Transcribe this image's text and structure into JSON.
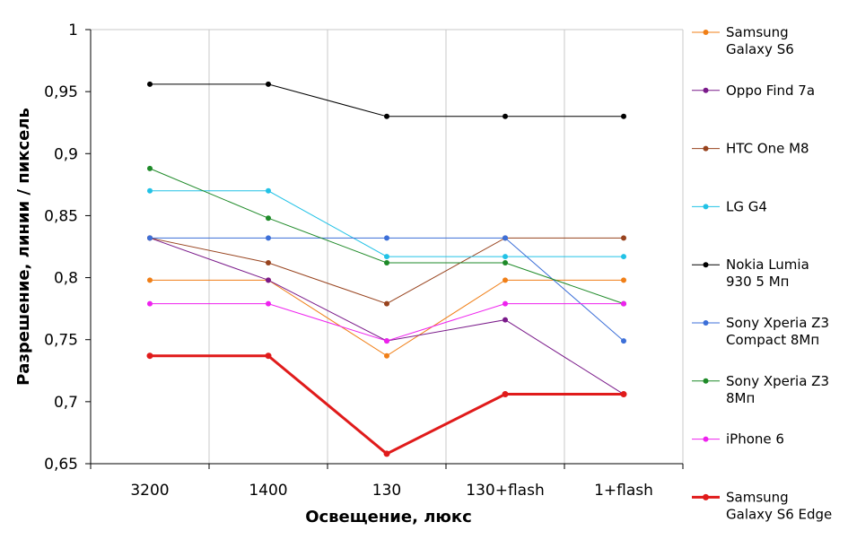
{
  "chart_data": {
    "type": "line",
    "xlabel": "Освещение, люкс",
    "ylabel": "Разрешение, линии / пиксель",
    "categories": [
      "3200",
      "1400",
      "130",
      "130+flash",
      "1+flash"
    ],
    "ylim": [
      0.65,
      1
    ],
    "yticks": [
      "0,65",
      "0,7",
      "0,75",
      "0,8",
      "0,85",
      "0,9",
      "0,95",
      "1"
    ],
    "grid": "vertical",
    "legend_position": "right",
    "series": [
      {
        "name": "Samsung Galaxy S6",
        "legend_lines": [
          "Samsung",
          "Galaxy S6"
        ],
        "color": "#f07f17",
        "values": [
          0.798,
          0.798,
          0.737,
          0.798,
          0.798
        ]
      },
      {
        "name": "Oppo Find 7a",
        "legend_lines": [
          "Oppo Find 7a"
        ],
        "color": "#7a1a8a",
        "values": [
          0.832,
          0.798,
          0.749,
          0.766,
          0.706
        ]
      },
      {
        "name": "HTC One M8",
        "legend_lines": [
          "HTC One M8"
        ],
        "color": "#98431e",
        "values": [
          0.832,
          0.812,
          0.779,
          0.832,
          0.832
        ]
      },
      {
        "name": "LG G4",
        "legend_lines": [
          "LG G4"
        ],
        "color": "#22c2e6",
        "values": [
          0.87,
          0.87,
          0.817,
          0.817,
          0.817
        ]
      },
      {
        "name": "Nokia Lumia 930 5 Мп",
        "legend_lines": [
          "Nokia Lumia",
          "930 5 Мп"
        ],
        "color": "#000000",
        "values": [
          0.956,
          0.956,
          0.93,
          0.93,
          0.93
        ]
      },
      {
        "name": "Sony Xperia Z3 Compact 8Мп",
        "legend_lines": [
          "Sony Xperia Z3",
          "Compact 8Мп"
        ],
        "color": "#3c6fd8",
        "values": [
          0.832,
          0.832,
          0.832,
          0.832,
          0.749
        ]
      },
      {
        "name": "Sony Xperia Z3 8Мп",
        "legend_lines": [
          "Sony Xperia Z3",
          "8Мп"
        ],
        "color": "#1e8a28",
        "values": [
          0.888,
          0.848,
          0.812,
          0.812,
          0.779
        ]
      },
      {
        "name": "iPhone 6",
        "legend_lines": [
          "iPhone 6"
        ],
        "color": "#ee22ee",
        "values": [
          0.779,
          0.779,
          0.749,
          0.779,
          0.779
        ]
      },
      {
        "name": "Samsung Galaxy S6 Edge",
        "legend_lines": [
          "Samsung",
          "Galaxy S6 Edge"
        ],
        "color": "#e01b1b",
        "bold": true,
        "values": [
          0.737,
          0.737,
          0.658,
          0.706,
          0.706
        ]
      }
    ]
  }
}
